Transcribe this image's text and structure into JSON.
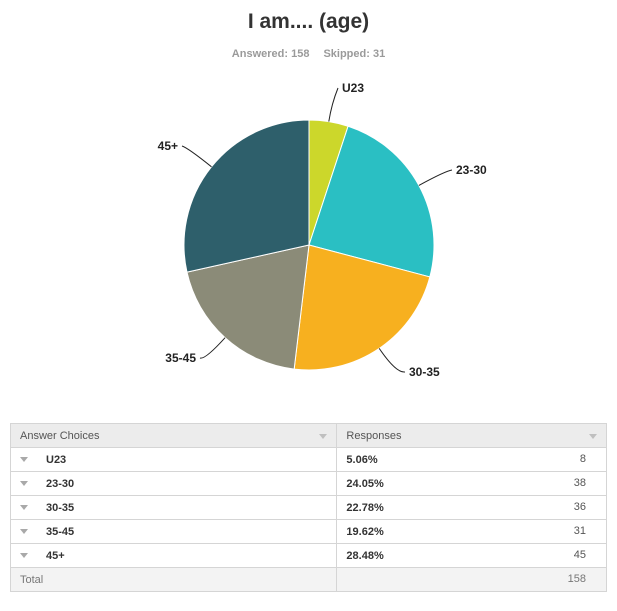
{
  "header": {
    "title": "I am.... (age)",
    "answered_label": "Answered: 158",
    "skipped_label": "Skipped: 31"
  },
  "chart_data": {
    "type": "pie",
    "title": "I am.... (age)",
    "categories": [
      "U23",
      "23-30",
      "30-35",
      "35-45",
      "45+"
    ],
    "values": [
      5.06,
      24.05,
      22.78,
      19.62,
      28.48
    ],
    "counts": [
      8,
      38,
      36,
      31,
      45
    ],
    "colors": [
      "#ccd72b",
      "#2abfc3",
      "#f7b01f",
      "#8b8b78",
      "#2e5f6b"
    ],
    "start": "top, clockwise"
  },
  "table": {
    "col_choices": "Answer Choices",
    "col_responses": "Responses",
    "rows": [
      {
        "choice": "U23",
        "percent": "5.06%",
        "count": "8"
      },
      {
        "choice": "23-30",
        "percent": "24.05%",
        "count": "38"
      },
      {
        "choice": "30-35",
        "percent": "22.78%",
        "count": "36"
      },
      {
        "choice": "35-45",
        "percent": "19.62%",
        "count": "31"
      },
      {
        "choice": "45+",
        "percent": "28.48%",
        "count": "45"
      }
    ],
    "total_label": "Total",
    "total_value": "158"
  }
}
